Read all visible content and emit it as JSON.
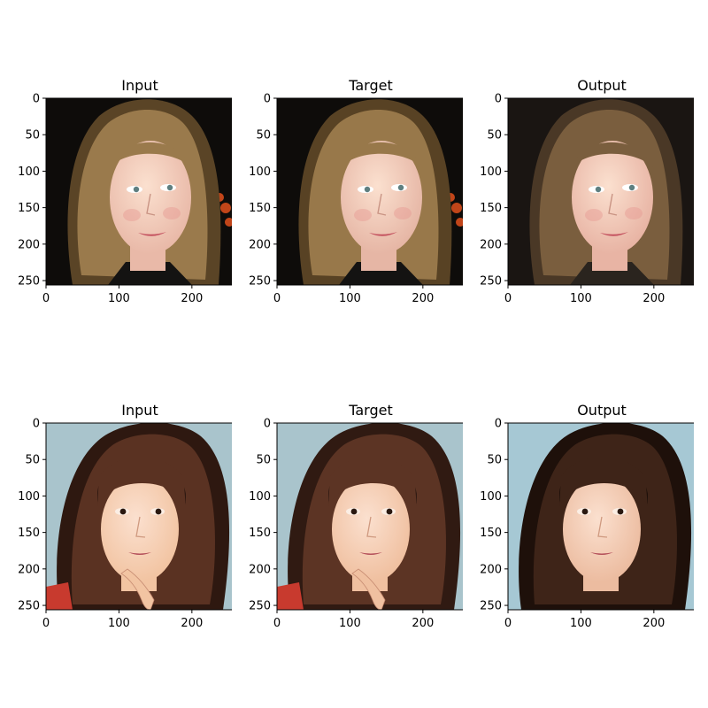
{
  "chart_data": [
    {
      "type": "image",
      "title": "Input",
      "xlim": [
        0,
        256
      ],
      "ylim": [
        256,
        0
      ],
      "xticks": [
        0,
        100,
        200
      ],
      "yticks": [
        0,
        50,
        100,
        150,
        200,
        250
      ],
      "image": {
        "subject": "portrait-face",
        "background": "#0e0c0a",
        "hair": "#9a7a4c",
        "hair_dark": "#5a4426",
        "skin": "#e9b9a8",
        "clothing": "#141312",
        "accent_lights": "#e0501c"
      }
    },
    {
      "type": "image",
      "title": "Target",
      "xlim": [
        0,
        256
      ],
      "ylim": [
        256,
        0
      ],
      "xticks": [
        0,
        100,
        200
      ],
      "yticks": [
        0,
        50,
        100,
        150,
        200,
        250
      ],
      "image": {
        "subject": "portrait-face",
        "background": "#0e0c0a",
        "hair": "#98784a",
        "hair_dark": "#584224",
        "skin": "#e6b6a5",
        "clothing": "#141312",
        "accent_lights": "#e0501c"
      }
    },
    {
      "type": "image",
      "title": "Output",
      "xlim": [
        0,
        256
      ],
      "ylim": [
        256,
        0
      ],
      "xticks": [
        0,
        100,
        200
      ],
      "yticks": [
        0,
        50,
        100,
        150,
        200,
        250
      ],
      "image": {
        "subject": "portrait-face",
        "background": "#1a1512",
        "hair": "#7a5e3e",
        "hair_dark": "#4a3826",
        "skin": "#e8b4a4",
        "clothing": "#2a241e",
        "accent_lights": ""
      }
    },
    {
      "type": "image",
      "title": "Input",
      "xlim": [
        0,
        256
      ],
      "ylim": [
        256,
        0
      ],
      "xticks": [
        0,
        100,
        200
      ],
      "yticks": [
        0,
        50,
        100,
        150,
        200,
        250
      ],
      "image": {
        "subject": "portrait-face",
        "background": "#a9c4cc",
        "hair": "#5a3222",
        "hair_dark": "#2e1810",
        "skin": "#f2c4a2",
        "clothing": "#c83a2e",
        "accent_lights": ""
      }
    },
    {
      "type": "image",
      "title": "Target",
      "xlim": [
        0,
        256
      ],
      "ylim": [
        256,
        0
      ],
      "xticks": [
        0,
        100,
        200
      ],
      "yticks": [
        0,
        50,
        100,
        150,
        200,
        250
      ],
      "image": {
        "subject": "portrait-face",
        "background": "#a9c4cc",
        "hair": "#5c3424",
        "hair_dark": "#301a12",
        "skin": "#f0c0a0",
        "clothing": "#c83a2e",
        "accent_lights": ""
      }
    },
    {
      "type": "image",
      "title": "Output",
      "xlim": [
        0,
        256
      ],
      "ylim": [
        256,
        0
      ],
      "xticks": [
        0,
        100,
        200
      ],
      "yticks": [
        0,
        50,
        100,
        150,
        200,
        250
      ],
      "image": {
        "subject": "portrait-face",
        "background": "#a6c8d4",
        "hair": "#3e2418",
        "hair_dark": "#1e100a",
        "skin": "#ecbca0",
        "clothing": "#4a2c20",
        "accent_lights": ""
      }
    }
  ]
}
